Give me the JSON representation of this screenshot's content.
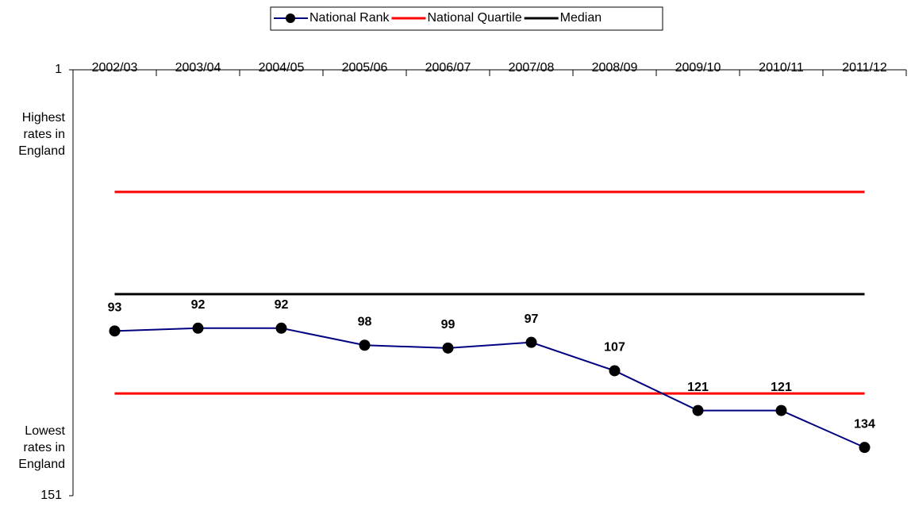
{
  "chart_data": {
    "type": "line",
    "categories": [
      "2002/03",
      "2003/04",
      "2004/05",
      "2005/06",
      "2006/07",
      "2007/08",
      "2008/09",
      "2009/10",
      "2010/11",
      "2011/12"
    ],
    "series": [
      {
        "name": "National Rank",
        "color": "#000080",
        "marker_color": "#000000",
        "values": [
          93,
          92,
          92,
          98,
          99,
          97,
          107,
          121,
          121,
          134
        ]
      }
    ],
    "reference_lines": [
      {
        "name": "National Quartile",
        "color": "#ff0000",
        "values": [
          44,
          115
        ]
      },
      {
        "name": "Median",
        "color": "#000000",
        "values": [
          80
        ]
      }
    ],
    "ylim": [
      1,
      151
    ],
    "yticks": [
      1,
      151
    ],
    "y_inverted": true,
    "annotations": [
      "Highest rates in England",
      "Lowest rates in England"
    ]
  }
}
